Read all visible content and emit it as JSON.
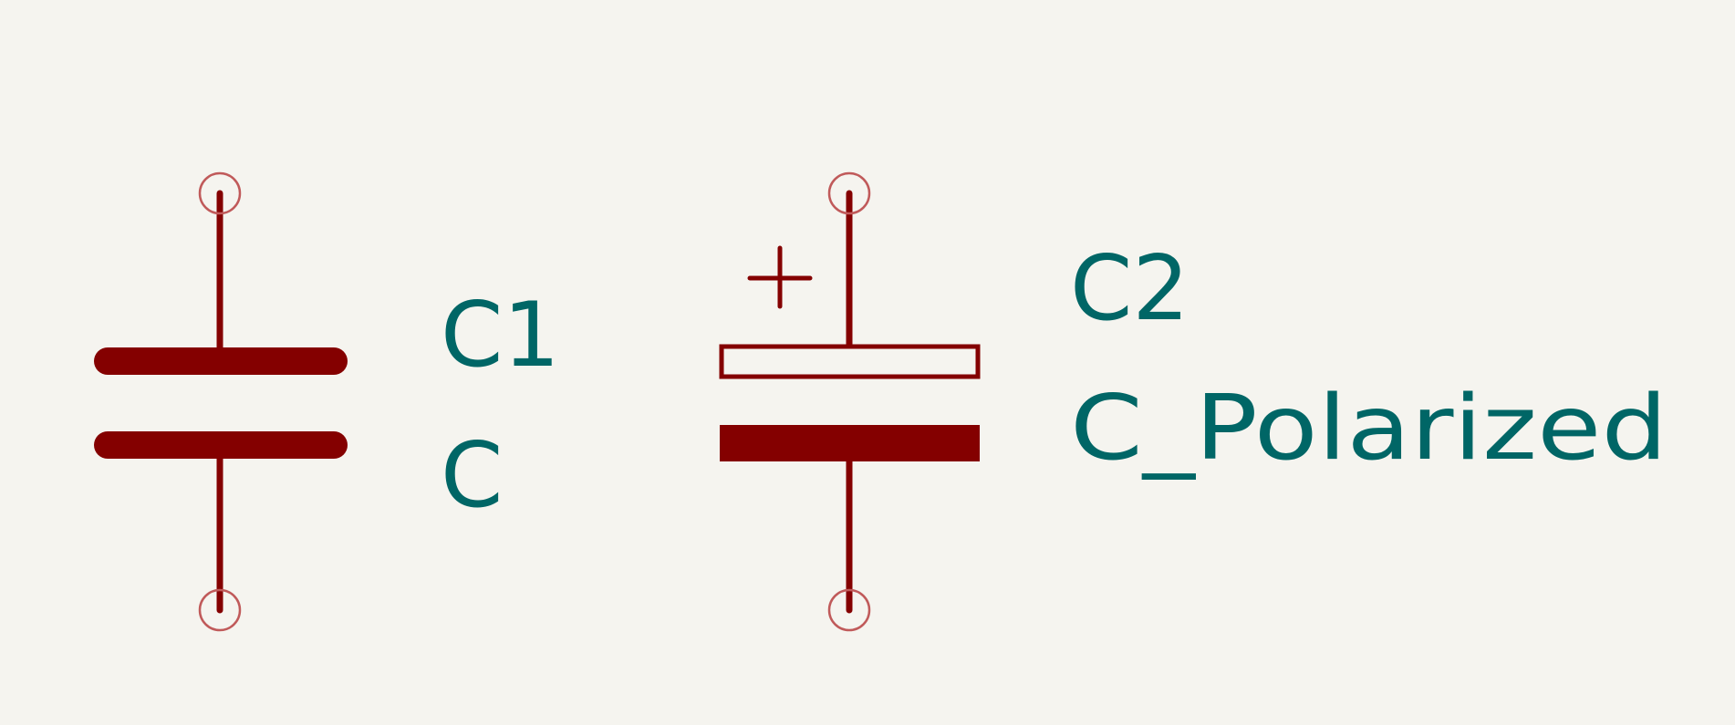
{
  "colors": {
    "background": "#f5f4ef",
    "symbol_body": "#840000",
    "pin_marker": "#c05a5a",
    "field_text": "#006666"
  },
  "symbols": [
    {
      "reference": "C1",
      "value": "C"
    },
    {
      "reference": "C2",
      "value": "C_Polarized",
      "polarity_mark": "+"
    }
  ]
}
